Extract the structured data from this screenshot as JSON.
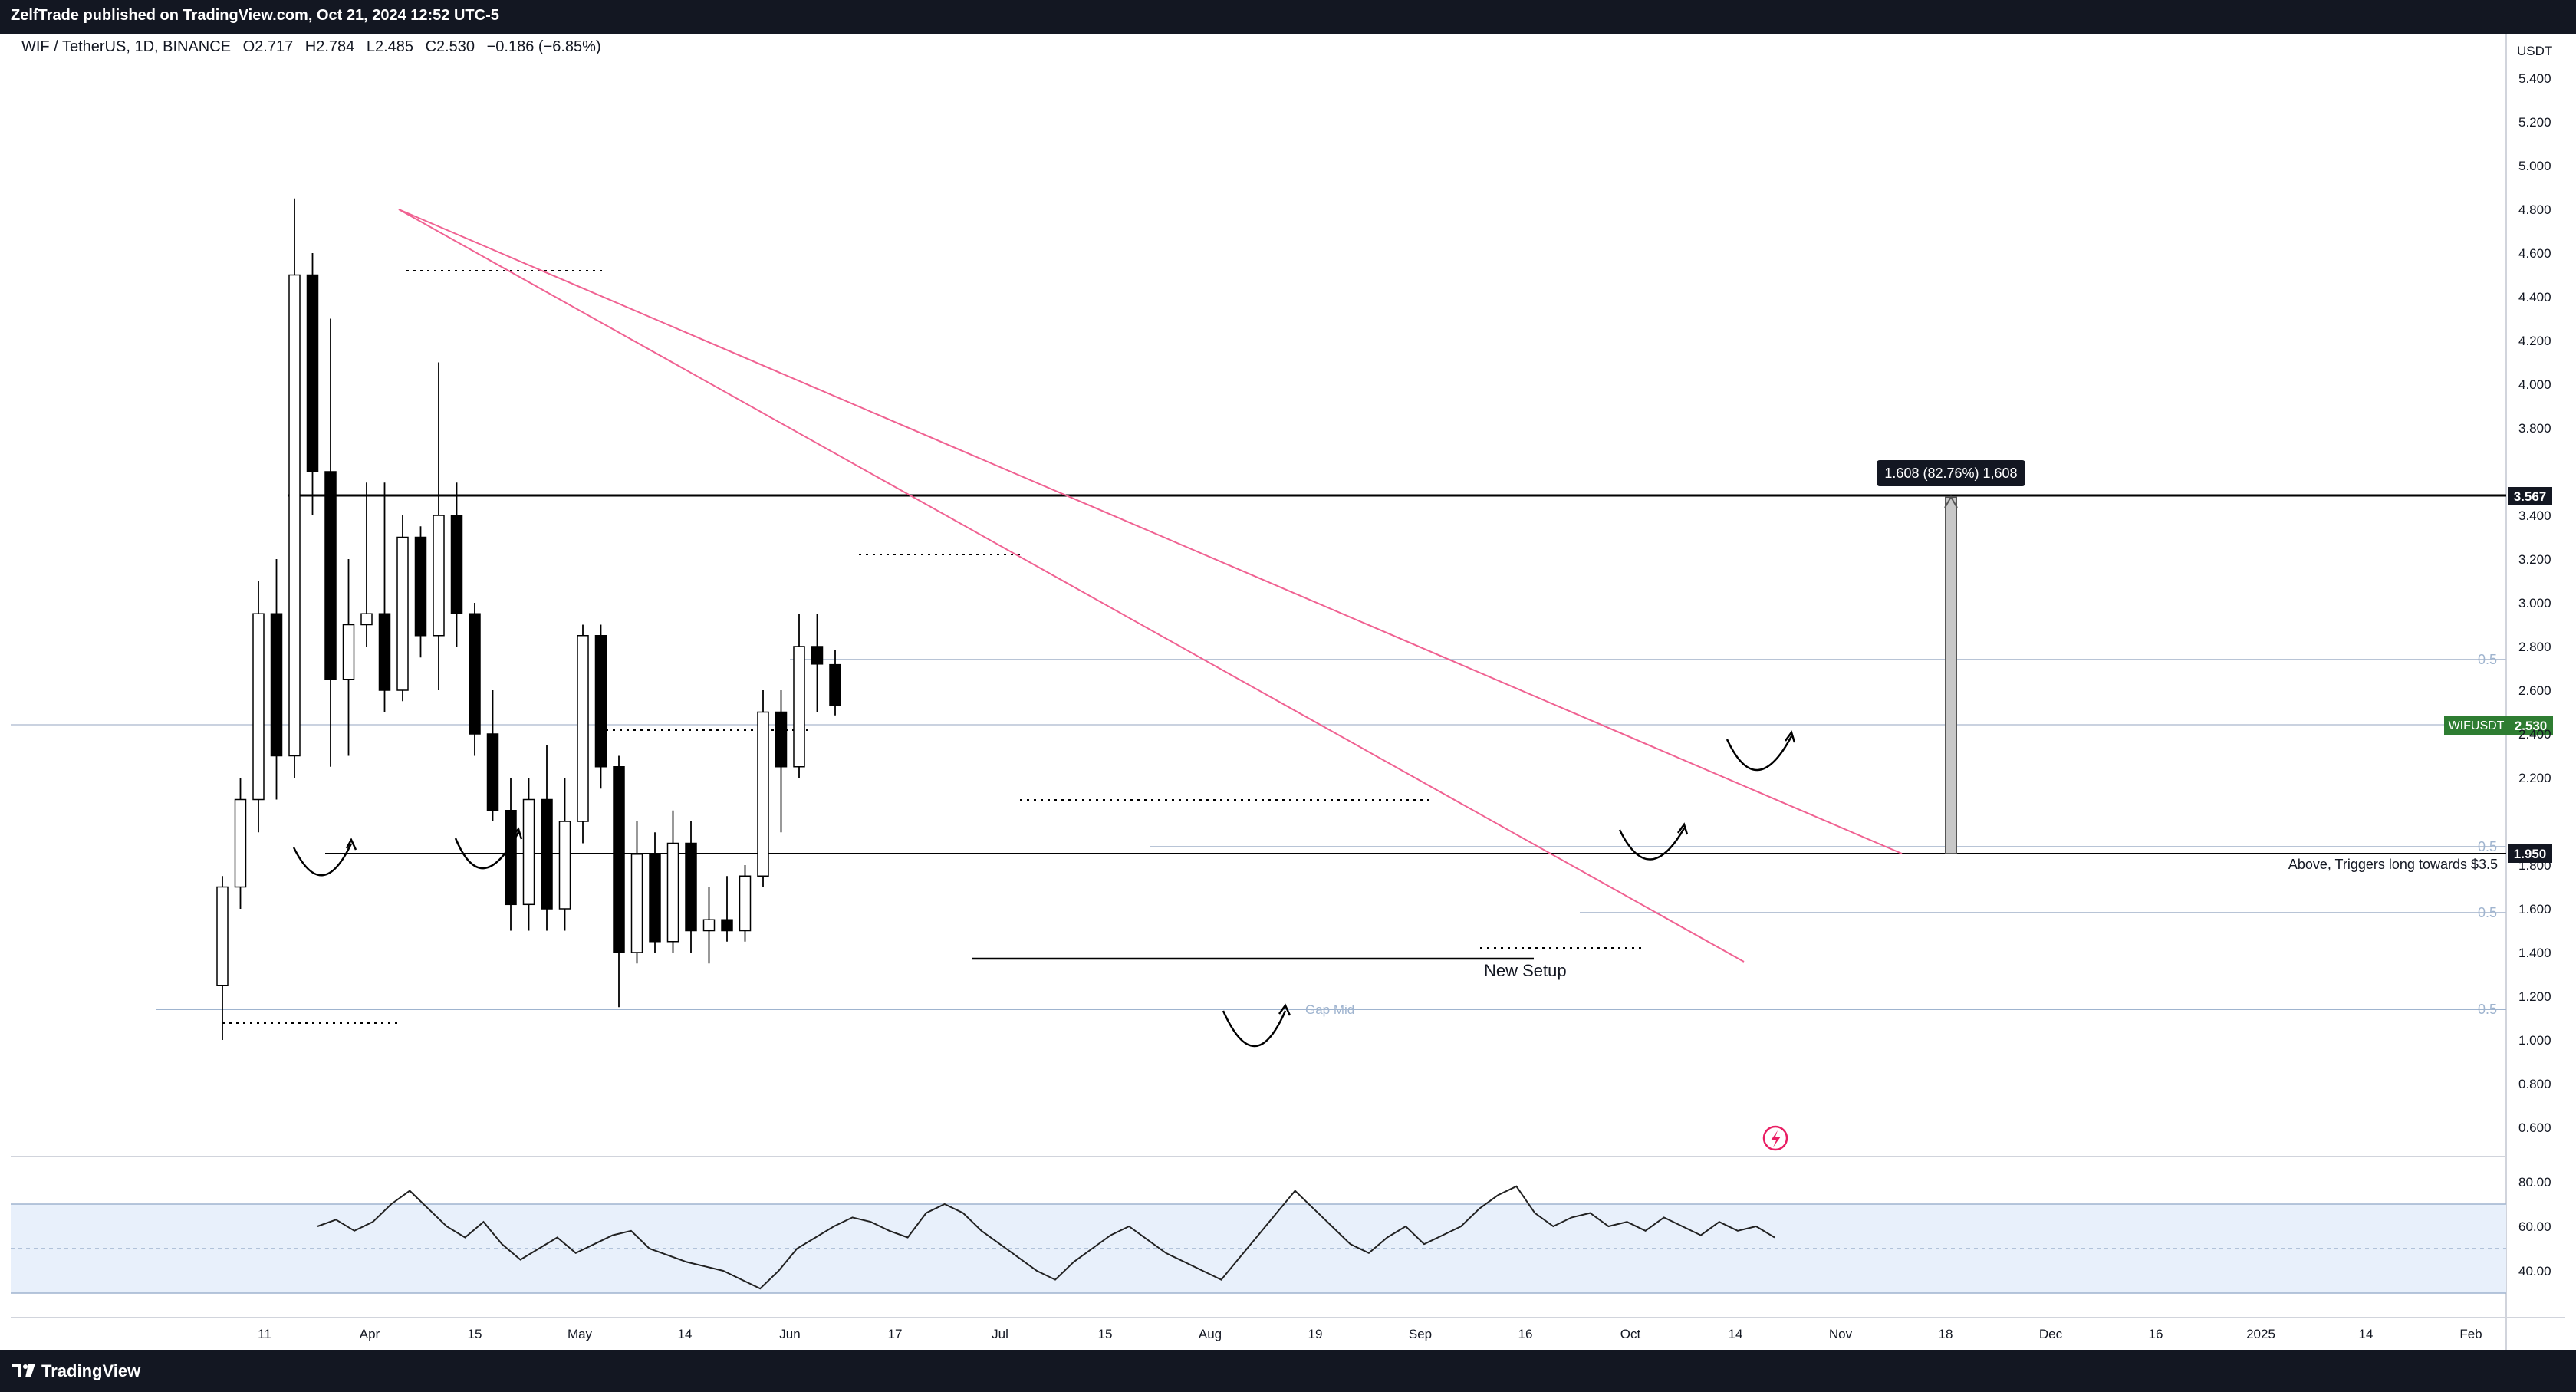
{
  "header": {
    "published": "ZelfTrade published on TradingView.com, Oct 21, 2024 12:52 UTC-5"
  },
  "legend": {
    "symbol": "WIF / TetherUS, 1D, BINANCE",
    "open": "O2.717",
    "high": "H2.784",
    "low": "L2.485",
    "close": "C2.530",
    "change": "−0.186 (−6.85%)"
  },
  "footer": {
    "brand": "TradingView"
  },
  "price_axis": {
    "currency": "USDT",
    "ticks": [
      "5.400",
      "5.200",
      "5.000",
      "4.800",
      "4.600",
      "4.400",
      "4.200",
      "4.000",
      "3.800",
      "3.400",
      "3.200",
      "3.000",
      "2.800",
      "2.600",
      "2.400",
      "2.200",
      "1.800",
      "1.600",
      "1.400",
      "1.200",
      "1.000",
      "0.800",
      "0.600"
    ],
    "resistance_label": "3.567",
    "ticker_label": "WIFUSDT",
    "ticker_value": "2.530",
    "support_label": "1.950"
  },
  "rsi_axis": {
    "ticks": [
      "80.00",
      "60.00",
      "40.00"
    ]
  },
  "time_axis": {
    "labels": [
      "11",
      "Apr",
      "15",
      "May",
      "14",
      "Jun",
      "17",
      "Jul",
      "15",
      "Aug",
      "19",
      "Sep",
      "16",
      "Oct",
      "14",
      "Nov",
      "18",
      "Dec",
      "16",
      "2025",
      "14",
      "Feb"
    ]
  },
  "annotations": {
    "measure": "1.608 (82.76%) 1,608",
    "above_note": "Above, Triggers long towards $3.5",
    "new_setup": "New Setup",
    "gap_mid": "Gap Mid",
    "fib_half": "0.5"
  },
  "colors": {
    "up": "#ffffff",
    "down": "#000000",
    "trendline": "#f06292",
    "ticker_bg": "#2e7d32",
    "rsi_band": "#e8f0fb"
  },
  "chart_data": {
    "type": "candlestick",
    "symbol": "WIF / TetherUS",
    "interval": "1D",
    "y_range": [
      0.6,
      5.5
    ],
    "horizontal_levels": [
      3.567,
      1.95,
      1.47,
      1.25
    ],
    "series": [
      {
        "date": "Mar 1",
        "open": 1.25,
        "high": 1.75,
        "low": 1.0,
        "close": 1.7
      },
      {
        "date": "Mar 8",
        "open": 1.7,
        "high": 2.2,
        "low": 1.6,
        "close": 2.1
      },
      {
        "date": "Mar 15",
        "open": 2.1,
        "high": 3.1,
        "low": 1.95,
        "close": 2.95
      },
      {
        "date": "Mar 22",
        "open": 2.95,
        "high": 3.2,
        "low": 2.1,
        "close": 2.3
      },
      {
        "date": "Mar 29",
        "open": 2.3,
        "high": 4.85,
        "low": 2.2,
        "close": 4.5
      },
      {
        "date": "Apr 5",
        "open": 4.5,
        "high": 4.6,
        "low": 3.4,
        "close": 3.6
      },
      {
        "date": "Apr 12",
        "open": 3.6,
        "high": 4.3,
        "low": 2.25,
        "close": 2.65
      },
      {
        "date": "Apr 19",
        "open": 2.65,
        "high": 3.2,
        "low": 2.3,
        "close": 2.9
      },
      {
        "date": "Apr 26",
        "open": 2.9,
        "high": 3.55,
        "low": 2.8,
        "close": 2.95
      },
      {
        "date": "May 3",
        "open": 2.95,
        "high": 3.55,
        "low": 2.5,
        "close": 2.6
      },
      {
        "date": "May 10",
        "open": 2.6,
        "high": 3.4,
        "low": 2.55,
        "close": 3.3
      },
      {
        "date": "May 17",
        "open": 3.3,
        "high": 3.35,
        "low": 2.75,
        "close": 2.85
      },
      {
        "date": "May 24",
        "open": 2.85,
        "high": 4.1,
        "low": 2.6,
        "close": 3.4
      },
      {
        "date": "May 31",
        "open": 3.4,
        "high": 3.55,
        "low": 2.8,
        "close": 2.95
      },
      {
        "date": "Jun 7",
        "open": 2.95,
        "high": 3.0,
        "low": 2.3,
        "close": 2.4
      },
      {
        "date": "Jun 14",
        "open": 2.4,
        "high": 2.6,
        "low": 2.0,
        "close": 2.05
      },
      {
        "date": "Jun 21",
        "open": 2.05,
        "high": 2.2,
        "low": 1.5,
        "close": 1.62
      },
      {
        "date": "Jun 28",
        "open": 1.62,
        "high": 2.2,
        "low": 1.5,
        "close": 2.1
      },
      {
        "date": "Jul 5",
        "open": 2.1,
        "high": 2.35,
        "low": 1.5,
        "close": 1.6
      },
      {
        "date": "Jul 12",
        "open": 1.6,
        "high": 2.2,
        "low": 1.5,
        "close": 2.0
      },
      {
        "date": "Jul 19",
        "open": 2.0,
        "high": 2.9,
        "low": 1.9,
        "close": 2.85
      },
      {
        "date": "Jul 26",
        "open": 2.85,
        "high": 2.9,
        "low": 2.15,
        "close": 2.25
      },
      {
        "date": "Aug 2",
        "open": 2.25,
        "high": 2.3,
        "low": 1.15,
        "close": 1.4
      },
      {
        "date": "Aug 9",
        "open": 1.4,
        "high": 2.0,
        "low": 1.35,
        "close": 1.85
      },
      {
        "date": "Aug 16",
        "open": 1.85,
        "high": 1.95,
        "low": 1.4,
        "close": 1.45
      },
      {
        "date": "Aug 23",
        "open": 1.45,
        "high": 2.05,
        "low": 1.4,
        "close": 1.9
      },
      {
        "date": "Aug 30",
        "open": 1.9,
        "high": 2.0,
        "low": 1.4,
        "close": 1.5
      },
      {
        "date": "Sep 6",
        "open": 1.5,
        "high": 1.7,
        "low": 1.35,
        "close": 1.55
      },
      {
        "date": "Sep 13",
        "open": 1.55,
        "high": 1.75,
        "low": 1.45,
        "close": 1.5
      },
      {
        "date": "Sep 20",
        "open": 1.5,
        "high": 1.8,
        "low": 1.45,
        "close": 1.75
      },
      {
        "date": "Sep 27",
        "open": 1.75,
        "high": 2.6,
        "low": 1.7,
        "close": 2.5
      },
      {
        "date": "Oct 4",
        "open": 2.5,
        "high": 2.6,
        "low": 1.95,
        "close": 2.25
      },
      {
        "date": "Oct 11",
        "open": 2.25,
        "high": 2.95,
        "low": 2.2,
        "close": 2.8
      },
      {
        "date": "Oct 18",
        "open": 2.8,
        "high": 2.95,
        "low": 2.5,
        "close": 2.72
      },
      {
        "date": "Oct 21",
        "open": 2.717,
        "high": 2.784,
        "low": 2.485,
        "close": 2.53
      }
    ],
    "rsi": {
      "range": [
        20,
        90
      ],
      "band": [
        30,
        70
      ],
      "values": [
        60,
        63,
        58,
        62,
        70,
        76,
        68,
        60,
        55,
        62,
        52,
        45,
        50,
        55,
        48,
        52,
        56,
        58,
        50,
        47,
        44,
        42,
        40,
        36,
        32,
        40,
        50,
        55,
        60,
        64,
        62,
        58,
        55,
        66,
        70,
        66,
        58,
        52,
        46,
        40,
        36,
        44,
        50,
        56,
        60,
        54,
        48,
        44,
        40,
        36,
        46,
        56,
        66,
        76,
        68,
        60,
        52,
        48,
        55,
        60,
        52,
        56,
        60,
        68,
        74,
        78,
        66,
        60,
        64,
        66,
        60,
        62,
        58,
        64,
        60,
        56,
        62,
        58,
        60,
        55
      ]
    }
  }
}
